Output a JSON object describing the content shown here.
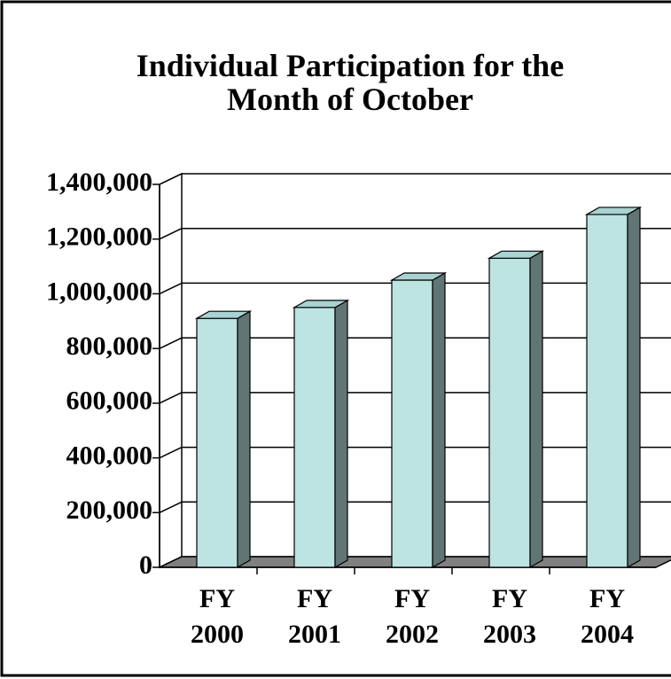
{
  "chart_data": {
    "type": "bar3d",
    "title": "Individual Participation for the Month of October",
    "categories": [
      "FY 2000",
      "FY 2001",
      "FY 2002",
      "FY 2003",
      "FY 2004"
    ],
    "values": [
      910000,
      950000,
      1050000,
      1130000,
      1290000
    ],
    "color": "#bde3e3",
    "ylim": [
      0,
      1400000
    ],
    "yticks": [
      0,
      {
        "value": 200000,
        "label": "200,000"
      },
      {
        "value": 400000,
        "label": "400,000"
      },
      {
        "value": 600000,
        "label": "600,000"
      },
      {
        "value": 800000,
        "label": "800,000"
      },
      {
        "value": 1000000,
        "label": "1,000,000"
      },
      {
        "value": 1200000,
        "label": "1,200,000"
      },
      {
        "value": 1400000,
        "label": "1,400,000"
      }
    ],
    "grid": true
  }
}
